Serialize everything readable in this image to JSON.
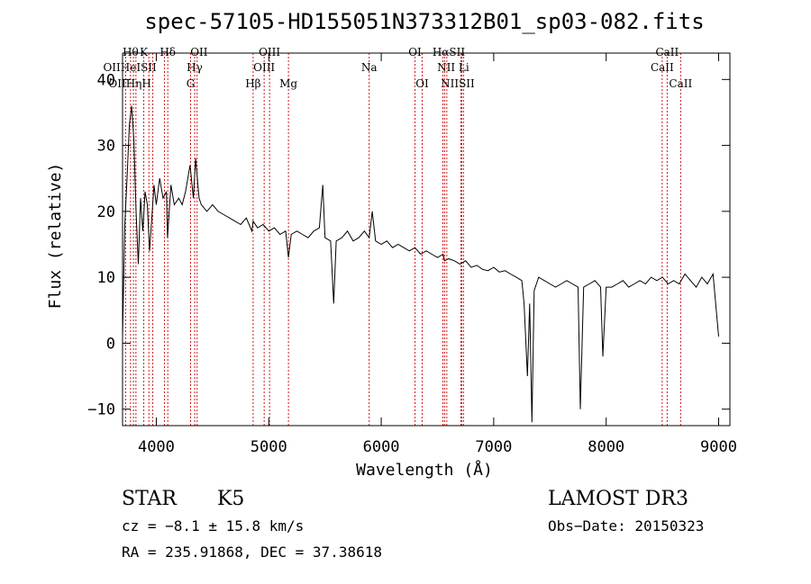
{
  "chart_data": {
    "type": "line",
    "title": "spec-57105-HD155051N373312B01_sp03-082.fits",
    "xlabel": "Wavelength (Å)",
    "ylabel": "Flux (relative)",
    "xlim": [
      3700,
      9100
    ],
    "ylim": [
      -12.5,
      44
    ],
    "x_ticks": [
      4000,
      5000,
      6000,
      7000,
      8000,
      9000
    ],
    "y_ticks": [
      -10,
      0,
      10,
      20,
      30,
      40
    ],
    "x_tick_labels": [
      "4000",
      "5000",
      "6000",
      "7000",
      "8000",
      "9000"
    ],
    "y_tick_labels": [
      "−10",
      "0",
      "10",
      "20",
      "30",
      "40"
    ],
    "grid": false,
    "line_color": "#000000",
    "marker_color": "#cc0000",
    "series": [
      {
        "name": "flux",
        "x": [
          3700,
          3720,
          3740,
          3760,
          3780,
          3800,
          3820,
          3840,
          3860,
          3880,
          3900,
          3920,
          3940,
          3960,
          3980,
          4000,
          4030,
          4060,
          4090,
          4100,
          4130,
          4160,
          4200,
          4230,
          4260,
          4300,
          4330,
          4350,
          4380,
          4400,
          4450,
          4500,
          4550,
          4600,
          4650,
          4700,
          4750,
          4800,
          4850,
          4861,
          4900,
          4950,
          5000,
          5050,
          5100,
          5150,
          5175,
          5200,
          5250,
          5300,
          5350,
          5400,
          5450,
          5480,
          5500,
          5550,
          5577,
          5600,
          5650,
          5700,
          5750,
          5800,
          5850,
          5893,
          5920,
          5950,
          6000,
          6050,
          6100,
          6150,
          6200,
          6250,
          6300,
          6350,
          6400,
          6450,
          6500,
          6550,
          6563,
          6600,
          6650,
          6700,
          6750,
          6800,
          6850,
          6900,
          6950,
          7000,
          7050,
          7100,
          7150,
          7200,
          7250,
          7270,
          7300,
          7320,
          7340,
          7360,
          7400,
          7450,
          7500,
          7550,
          7600,
          7650,
          7700,
          7750,
          7770,
          7800,
          7850,
          7900,
          7950,
          7970,
          8000,
          8050,
          8100,
          8150,
          8200,
          8250,
          8300,
          8350,
          8400,
          8450,
          8500,
          8550,
          8600,
          8650,
          8700,
          8750,
          8800,
          8850,
          8900,
          8950,
          9000
        ],
        "y": [
          1,
          18,
          25,
          33,
          36,
          31,
          20,
          12,
          22,
          17,
          23,
          21,
          14,
          19,
          24,
          21,
          25,
          22,
          23,
          16,
          24,
          21,
          22,
          21,
          23,
          27,
          22,
          28,
          22,
          21,
          20,
          21,
          20,
          19.5,
          19,
          18.5,
          18,
          19,
          17,
          18.5,
          17.5,
          18,
          17,
          17.5,
          16.5,
          17,
          13,
          16.5,
          17,
          16.5,
          16,
          17,
          17.5,
          24,
          16,
          15.5,
          6,
          15.5,
          16,
          17,
          15.5,
          16,
          17,
          16,
          20,
          15.5,
          15,
          15.5,
          14.5,
          15,
          14.5,
          14,
          14.5,
          13.5,
          14,
          13.5,
          13,
          13.5,
          12.5,
          12.8,
          12.5,
          12,
          12.5,
          11.5,
          11.8,
          11.2,
          11,
          11.5,
          10.8,
          11,
          10.5,
          10,
          9.5,
          6,
          -5,
          6,
          -12,
          8,
          10,
          9.5,
          9,
          8.5,
          9,
          9.5,
          9,
          8.5,
          -10,
          8.5,
          9,
          9.5,
          8.5,
          -2,
          8.5,
          8.5,
          9,
          9.5,
          8.5,
          9,
          9.5,
          9,
          10,
          9.5,
          10,
          9,
          9.5,
          9,
          10.5,
          9.5,
          8.5,
          10,
          9,
          10.5,
          1
        ]
      }
    ],
    "line_markers": [
      {
        "wavelength": 3727,
        "labels": [
          "OII"
        ]
      },
      {
        "wavelength": 3771,
        "labels": [
          "Hθ"
        ]
      },
      {
        "wavelength": 3797,
        "labels": [
          "Hη"
        ]
      },
      {
        "wavelength": 3819,
        "labels": [
          "HeI"
        ]
      },
      {
        "wavelength": 3889,
        "labels": [
          "Hζ"
        ]
      },
      {
        "wavelength": 3934,
        "labels": [
          "K"
        ]
      },
      {
        "wavelength": 3969,
        "labels": [
          "H"
        ]
      },
      {
        "wavelength": 4072,
        "labels": [
          "SII"
        ]
      },
      {
        "wavelength": 4102,
        "labels": [
          "Hδ"
        ]
      },
      {
        "wavelength": 4305,
        "labels": [
          "G"
        ]
      },
      {
        "wavelength": 4341,
        "labels": [
          "Hγ"
        ]
      },
      {
        "wavelength": 4363,
        "labels": [
          "OIII"
        ]
      },
      {
        "wavelength": 4861,
        "labels": [
          "Hβ"
        ]
      },
      {
        "wavelength": 4959,
        "labels": [
          "OIII"
        ]
      },
      {
        "wavelength": 5007,
        "labels": [
          "OIII"
        ]
      },
      {
        "wavelength": 5175,
        "labels": [
          "Mg"
        ]
      },
      {
        "wavelength": 5893,
        "labels": [
          "Na"
        ]
      },
      {
        "wavelength": 6300,
        "labels": [
          "OI"
        ]
      },
      {
        "wavelength": 6364,
        "labels": [
          "OI"
        ]
      },
      {
        "wavelength": 6548,
        "labels": [
          "NII"
        ]
      },
      {
        "wavelength": 6563,
        "labels": [
          "Hα"
        ]
      },
      {
        "wavelength": 6583,
        "labels": [
          "NII"
        ]
      },
      {
        "wavelength": 6708,
        "labels": [
          "Li"
        ]
      },
      {
        "wavelength": 6716,
        "labels": [
          "SII"
        ]
      },
      {
        "wavelength": 6731,
        "labels": [
          "SII"
        ]
      },
      {
        "wavelength": 8498,
        "labels": [
          "CaII"
        ]
      },
      {
        "wavelength": 8542,
        "labels": [
          "CaII"
        ]
      },
      {
        "wavelength": 8662,
        "labels": [
          "CaII"
        ]
      }
    ],
    "marker_label_rows": [
      [
        {
          "wavelength": 3771,
          "text": "Hθ"
        },
        {
          "wavelength": 3889,
          "text": "K"
        },
        {
          "wavelength": 4102,
          "text": "Hδ"
        },
        {
          "wavelength": 4380,
          "text": "OII"
        },
        {
          "wavelength": 5007,
          "text": "OIII"
        },
        {
          "wavelength": 6300,
          "text": "OI"
        },
        {
          "wavelength": 6600,
          "text": "HαSII"
        },
        {
          "wavelength": 8542,
          "text": "CaII"
        }
      ],
      [
        {
          "wavelength": 3765,
          "text": "OIIHeISII"
        },
        {
          "wavelength": 4341,
          "text": "Hγ"
        },
        {
          "wavelength": 4959,
          "text": "OIII"
        },
        {
          "wavelength": 5893,
          "text": "Na"
        },
        {
          "wavelength": 6640,
          "text": "NII Li"
        },
        {
          "wavelength": 8498,
          "text": "CaII"
        }
      ],
      [
        {
          "wavelength": 3765,
          "text": "OIIHηH"
        },
        {
          "wavelength": 4305,
          "text": "G"
        },
        {
          "wavelength": 4861,
          "text": "Hβ"
        },
        {
          "wavelength": 5175,
          "text": "Mg"
        },
        {
          "wavelength": 6364,
          "text": "OI"
        },
        {
          "wavelength": 6680,
          "text": "NIISII"
        },
        {
          "wavelength": 8662,
          "text": "CaII"
        }
      ]
    ]
  },
  "info": {
    "object_class": "STAR",
    "subclass": "K5",
    "survey": "LAMOST DR3",
    "redshift": "cz = −8.1 ± 15.8 km/s",
    "obs_date": "Obs−Date: 20150323",
    "coords": "RA = 235.91868, DEC =  37.38618"
  }
}
